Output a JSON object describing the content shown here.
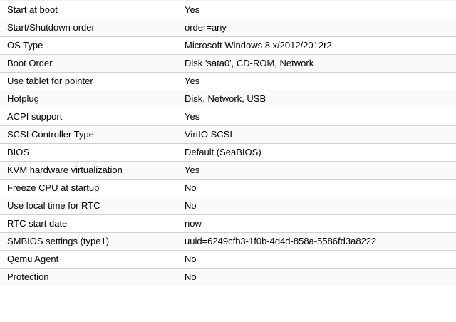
{
  "options": [
    {
      "key": "Start at boot",
      "value": "Yes"
    },
    {
      "key": "Start/Shutdown order",
      "value": "order=any"
    },
    {
      "key": "OS Type",
      "value": "Microsoft Windows 8.x/2012/2012r2"
    },
    {
      "key": "Boot Order",
      "value": "Disk 'sata0', CD-ROM, Network"
    },
    {
      "key": "Use tablet for pointer",
      "value": "Yes"
    },
    {
      "key": "Hotplug",
      "value": "Disk, Network, USB"
    },
    {
      "key": "ACPI support",
      "value": "Yes"
    },
    {
      "key": "SCSI Controller Type",
      "value": "VirtIO SCSI"
    },
    {
      "key": "BIOS",
      "value": "Default (SeaBIOS)"
    },
    {
      "key": "KVM hardware virtualization",
      "value": "Yes"
    },
    {
      "key": "Freeze CPU at startup",
      "value": "No"
    },
    {
      "key": "Use local time for RTC",
      "value": "No"
    },
    {
      "key": "RTC start date",
      "value": "now"
    },
    {
      "key": "SMBIOS settings (type1)",
      "value": "uuid=6249cfb3-1f0b-4d4d-858a-5586fd3a8222"
    },
    {
      "key": "Qemu Agent",
      "value": "No"
    },
    {
      "key": "Protection",
      "value": "No"
    }
  ]
}
